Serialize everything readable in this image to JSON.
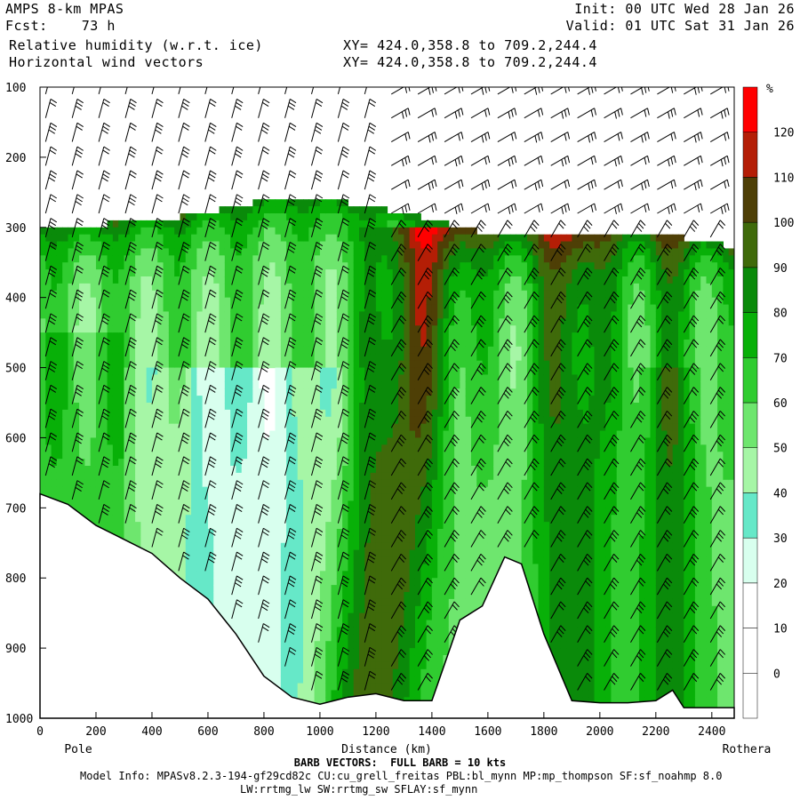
{
  "header": {
    "model": "AMPS 8-km MPAS",
    "fcst": "Fcst:    73 h",
    "field1": "Relative humidity (w.r.t. ice)",
    "field2": "Horizontal wind vectors",
    "init": "Init: 00 UTC Wed 28 Jan 26",
    "valid": "Valid: 01 UTC Sat 31 Jan 26",
    "xy1": "XY= 424.0,358.8 to 709.2,244.4",
    "xy2": "XY= 424.0,358.8 to 709.2,244.4"
  },
  "footer": {
    "barb_note": "BARB VECTORS:  FULL BARB = 10 kts",
    "model_info": "Model Info: MPASv8.2.3-194-gf29cd82c CU:cu_grell_freitas PBL:bl_mynn MP:mp_thompson SF:sf_noahmp 8.0",
    "model_info2": "LW:rrtmg_lw SW:rrtmg_sw SFLAY:sf_mynn"
  },
  "chart_data": {
    "type": "heatmap",
    "title": "Relative humidity (w.r.t. ice)",
    "xlabel": "Distance (km)",
    "x_start_label": "Pole",
    "x_end_label": "Rothera",
    "xlim": [
      0,
      2480
    ],
    "ylim": [
      1000,
      100
    ],
    "x_ticks": [
      0,
      200,
      400,
      600,
      800,
      1000,
      1200,
      1400,
      1600,
      1800,
      2000,
      2200,
      2400
    ],
    "y_ticks": [
      100,
      200,
      300,
      400,
      500,
      600,
      700,
      800,
      900,
      1000
    ],
    "colorbar": {
      "unit": "%",
      "levels": [
        0,
        10,
        20,
        30,
        40,
        50,
        60,
        70,
        80,
        90,
        100,
        110,
        120
      ],
      "colors": [
        "#ffffff",
        "#ffffff",
        "#ffffff",
        "#d8ffee",
        "#66e8c8",
        "#a6f6a6",
        "#6ee66e",
        "#30cc30",
        "#08b008",
        "#0a8a0a",
        "#3f6a0a",
        "#4e3f06",
        "#b41e06",
        "#ff0000"
      ]
    },
    "terrain_profile": [
      [
        0,
        680
      ],
      [
        100,
        695
      ],
      [
        200,
        725
      ],
      [
        300,
        745
      ],
      [
        400,
        765
      ],
      [
        500,
        800
      ],
      [
        600,
        830
      ],
      [
        700,
        880
      ],
      [
        800,
        940
      ],
      [
        900,
        970
      ],
      [
        1000,
        980
      ],
      [
        1100,
        970
      ],
      [
        1200,
        965
      ],
      [
        1300,
        975
      ],
      [
        1400,
        975
      ],
      [
        1500,
        860
      ],
      [
        1580,
        840
      ],
      [
        1660,
        770
      ],
      [
        1720,
        780
      ],
      [
        1800,
        880
      ],
      [
        1900,
        975
      ],
      [
        2000,
        978
      ],
      [
        2100,
        978
      ],
      [
        2200,
        975
      ],
      [
        2260,
        960
      ],
      [
        2300,
        985
      ],
      [
        2480,
        985
      ]
    ],
    "moist_layer_top": [
      [
        0,
        300
      ],
      [
        200,
        300
      ],
      [
        300,
        290
      ],
      [
        500,
        285
      ],
      [
        700,
        270
      ],
      [
        900,
        255
      ],
      [
        1100,
        265
      ],
      [
        1300,
        280
      ],
      [
        1450,
        295
      ],
      [
        1650,
        315
      ],
      [
        1800,
        310
      ],
      [
        2000,
        305
      ],
      [
        2200,
        310
      ],
      [
        2400,
        320
      ],
      [
        2480,
        330
      ]
    ]
  }
}
